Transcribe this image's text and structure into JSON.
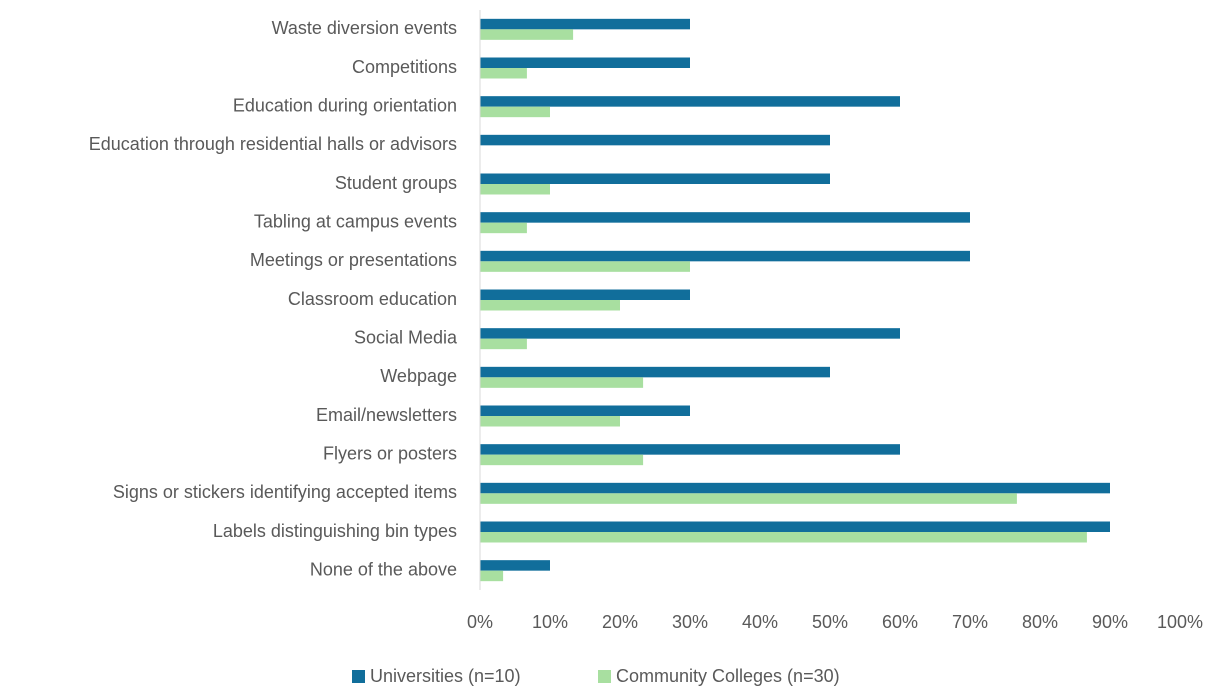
{
  "chart_data": {
    "type": "bar",
    "orientation": "horizontal",
    "categories": [
      "Waste diversion events",
      "Competitions",
      "Education during orientation",
      "Education through residential halls or advisors",
      "Student groups",
      "Tabling at campus events",
      "Meetings or presentations",
      "Classroom education",
      "Social Media",
      "Webpage",
      "Email/newsletters",
      "Flyers or posters",
      "Signs or stickers identifying accepted items",
      "Labels distinguishing bin types",
      "None of the above"
    ],
    "series": [
      {
        "name": "Universities (n=10)",
        "color": "#116e9b",
        "values": [
          30,
          30,
          60,
          50,
          50,
          70,
          70,
          30,
          60,
          50,
          30,
          60,
          90,
          90,
          10
        ]
      },
      {
        "name": "Community Colleges (n=30)",
        "color": "#a8dfa0",
        "values": [
          13.3,
          6.7,
          10,
          0,
          10,
          6.7,
          30,
          20,
          6.7,
          23.3,
          20,
          23.3,
          76.7,
          86.7,
          3.3
        ]
      }
    ],
    "xlim": [
      0,
      100
    ],
    "xticks": [
      {
        "value": 0,
        "label": "0%"
      },
      {
        "value": 10,
        "label": "10%"
      },
      {
        "value": 20,
        "label": "20%"
      },
      {
        "value": 30,
        "label": "30%"
      },
      {
        "value": 40,
        "label": "40%"
      },
      {
        "value": 50,
        "label": "50%"
      },
      {
        "value": 60,
        "label": "60%"
      },
      {
        "value": 70,
        "label": "70%"
      },
      {
        "value": 80,
        "label": "80%"
      },
      {
        "value": 90,
        "label": "90%"
      },
      {
        "value": 100,
        "label": "100%"
      }
    ],
    "grid": false,
    "legend": "bottom"
  }
}
